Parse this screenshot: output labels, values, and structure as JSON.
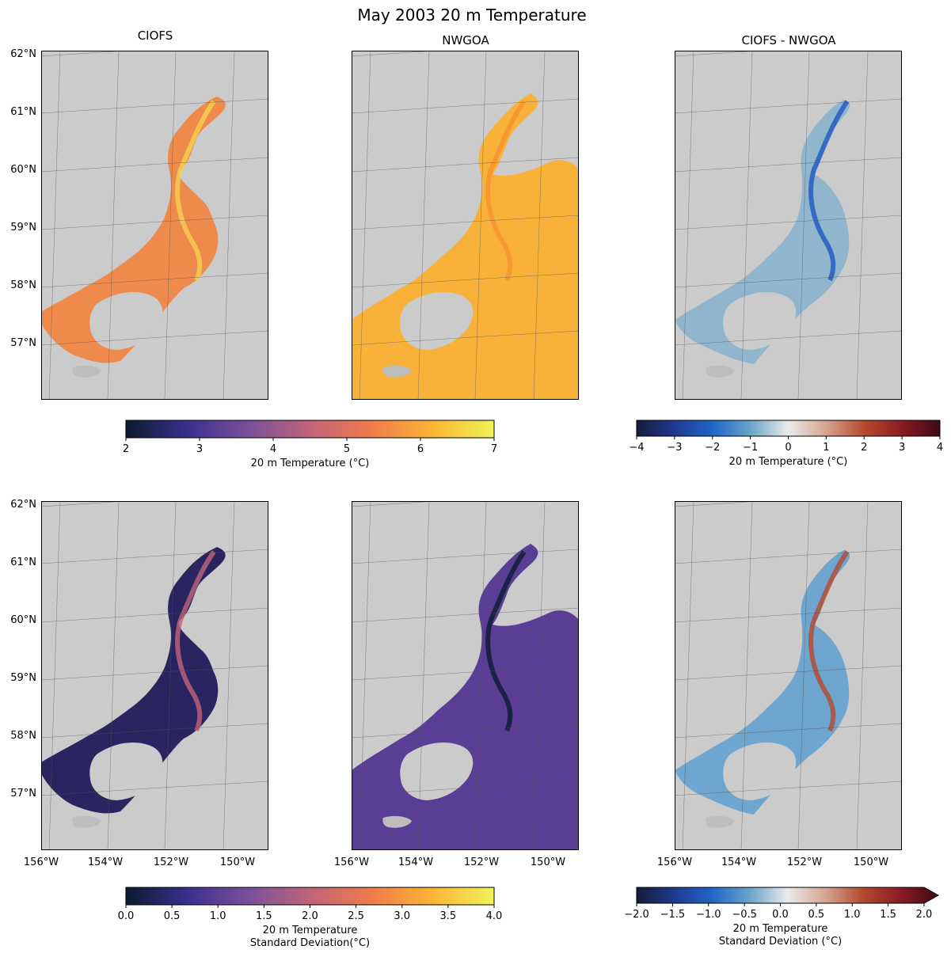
{
  "figure": {
    "title": "May 2003 20 m Temperature"
  },
  "columns": [
    "CIOFS",
    "NWGOA",
    "CIOFS - NWGOA"
  ],
  "lat_labels": [
    "62°N",
    "61°N",
    "60°N",
    "59°N",
    "58°N",
    "57°N"
  ],
  "lon_labels": [
    "156°W",
    "154°W",
    "152°W",
    "150°W"
  ],
  "colorbars": {
    "temp": {
      "ticks": [
        "2",
        "3",
        "4",
        "5",
        "6",
        "7"
      ],
      "label": "20 m Temperature (°C)",
      "colors": [
        "#0b1b2e",
        "#3a2f8f",
        "#7a4f9a",
        "#c0647a",
        "#f07b4a",
        "#fbb535",
        "#eef45a"
      ]
    },
    "temp_diff": {
      "ticks": [
        "−4",
        "−3",
        "−2",
        "−1",
        "0",
        "1",
        "2",
        "3",
        "4"
      ],
      "label": "20 m Temperature (°C)",
      "colors": [
        "#141b3c",
        "#1f3a8f",
        "#1f66c8",
        "#6aa4c8",
        "#eaeaea",
        "#d6a491",
        "#b54a2d",
        "#8a1b25",
        "#3c0a14"
      ]
    },
    "std": {
      "ticks": [
        "0.0",
        "0.5",
        "1.0",
        "1.5",
        "2.0",
        "2.5",
        "3.0",
        "3.5",
        "4.0"
      ],
      "label_line1": "20 m Temperature",
      "label_line2": "Standard Deviation(°C)",
      "colors": [
        "#0b1b2e",
        "#3a2f8f",
        "#7a4f9a",
        "#c0647a",
        "#f07b4a",
        "#fbb535",
        "#eef45a"
      ]
    },
    "std_diff": {
      "ticks": [
        "−2.0",
        "−1.5",
        "−1.0",
        "−0.5",
        "0.0",
        "0.5",
        "1.0",
        "1.5",
        "2.0"
      ],
      "label_line1": "20 m Temperature",
      "label_line2": "Standard Deviation (°C)",
      "colors": [
        "#141b3c",
        "#1f3a8f",
        "#1f66c8",
        "#6aa4c8",
        "#eaeaea",
        "#d6a491",
        "#b54a2d",
        "#8a1b25",
        "#3c0a14"
      ]
    }
  },
  "colors": {
    "land": "#cbcbcb",
    "grid": "#555555",
    "ciofs_mean_fill": "#ee8a4c",
    "ciofs_mean_offshore": "#f3d24e",
    "nwgoa_mean_fill": "#f8b23a",
    "diff_mean_fill": "#8fb6cc",
    "ciofs_std_fill": "#2a2560",
    "nwgoa_std_fill": "#5a3d95",
    "diff_std_fill": "#6fa6cf"
  }
}
